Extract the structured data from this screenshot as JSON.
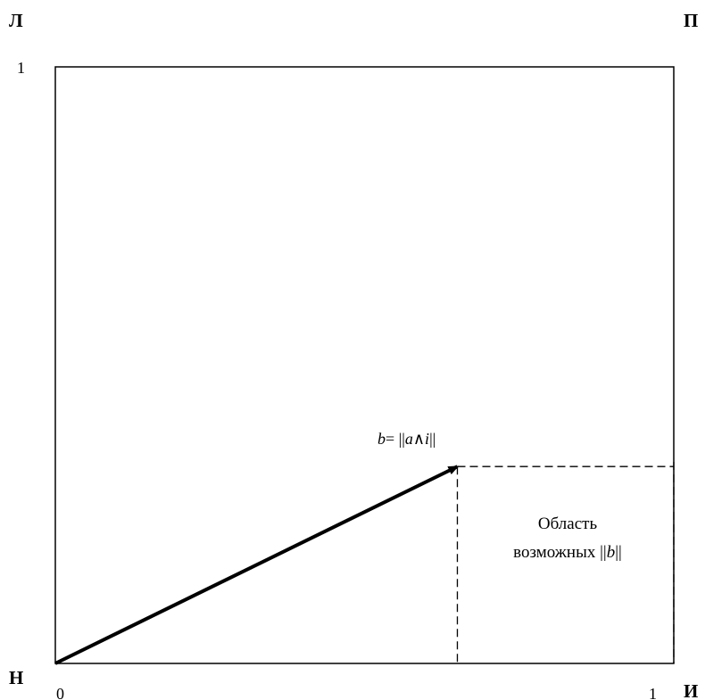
{
  "corners": {
    "top_left": "Л",
    "top_right": "П",
    "bottom_left": "Н",
    "bottom_right": "И"
  },
  "ticks": {
    "y_max": "1",
    "x_min": "0",
    "x_max": "1"
  },
  "vector": {
    "label_var": "b",
    "label_rest": "= ||",
    "label_a": "a",
    "label_op": "∧",
    "label_i": "i",
    "label_close": "||",
    "tip_x": 0.65,
    "tip_y": 0.33
  },
  "region": {
    "line1": "Область",
    "line2_prefix": "возможных ||",
    "line2_var": "b",
    "line2_suffix": "||"
  },
  "colors": {
    "stroke": "#000000",
    "background": "#ffffff"
  }
}
